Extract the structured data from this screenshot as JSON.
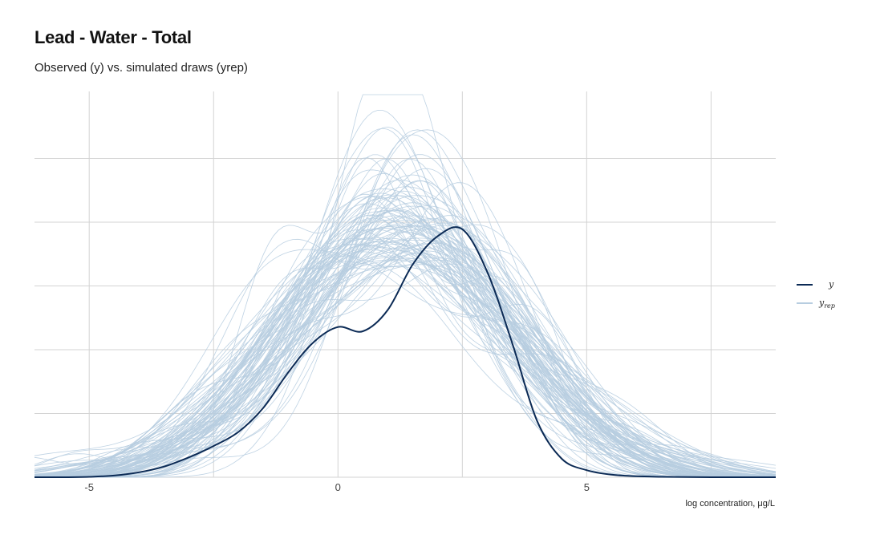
{
  "title": "Lead - Water - Total",
  "subtitle": "Observed (y) vs. simulated draws (yrep)",
  "colors": {
    "observed": "#0b2a55",
    "simulated": "#b7cde0",
    "grid": "#d3d3d3"
  },
  "chart_data": {
    "type": "line",
    "title": "Lead - Water - Total",
    "subtitle": "Observed (y) vs. simulated draws (yrep)",
    "xlabel": "log concentration, μg/L",
    "ylabel": "",
    "xlim": [
      -6.1,
      8.8
    ],
    "ylim": [
      0,
      0.27
    ],
    "x_ticks": [
      -5,
      0,
      5
    ],
    "x_tick_labels": [
      "-5",
      "0",
      "5"
    ],
    "y_tick_labels_shown": false,
    "grid": true,
    "legend": {
      "position": "right",
      "entries": [
        {
          "label": "y",
          "subscript": ""
        },
        {
          "label": "y",
          "subscript": "rep"
        }
      ]
    },
    "observed": {
      "name": "y",
      "x": [
        -6.1,
        -5.5,
        -5,
        -4.5,
        -4,
        -3.5,
        -3,
        -2.5,
        -2,
        -1.5,
        -1,
        -0.5,
        0,
        0.5,
        1,
        1.5,
        2,
        2.5,
        3,
        3.5,
        4,
        4.5,
        5,
        5.5,
        6,
        6.5,
        7,
        7.5,
        8,
        8.5,
        8.8
      ],
      "y": [
        0,
        0,
        0.0003,
        0.0012,
        0.0035,
        0.0075,
        0.014,
        0.022,
        0.032,
        0.049,
        0.074,
        0.095,
        0.106,
        0.103,
        0.118,
        0.15,
        0.17,
        0.175,
        0.145,
        0.095,
        0.04,
        0.013,
        0.005,
        0.0018,
        0.0007,
        0.0003,
        0.0001,
        0,
        0,
        0,
        0
      ]
    },
    "simulated_draws": {
      "name": "yrep",
      "count": 100
    }
  }
}
